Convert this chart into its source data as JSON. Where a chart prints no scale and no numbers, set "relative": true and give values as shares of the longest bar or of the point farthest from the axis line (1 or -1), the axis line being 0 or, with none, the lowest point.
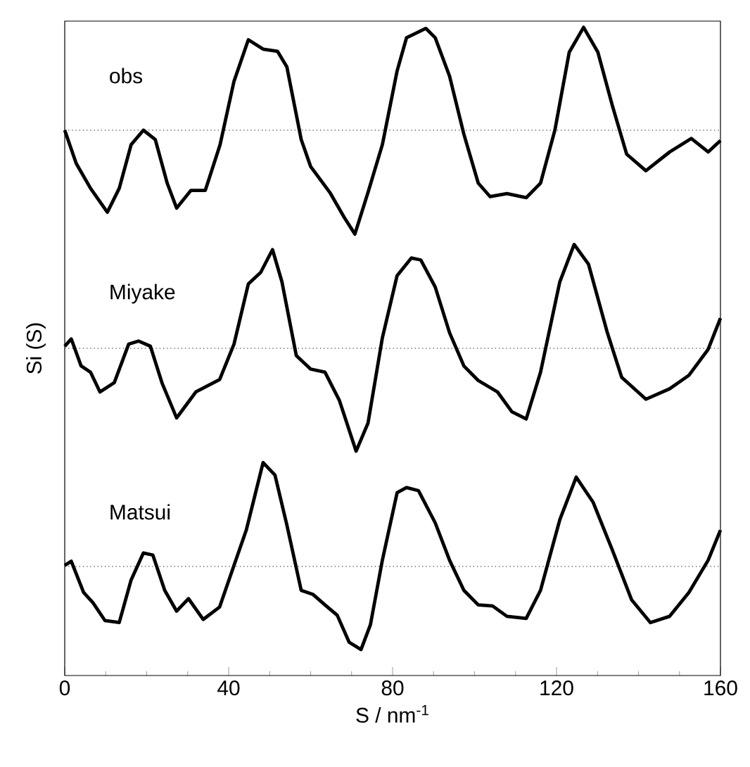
{
  "chart_data": [
    {
      "type": "line",
      "relative": true,
      "tick_labels": false,
      "xlim": [
        0,
        160
      ],
      "x": [
        0,
        2.8,
        6.3,
        10.4,
        13.3,
        16.2,
        19.2,
        22.1,
        25.0,
        27.3,
        30.8,
        34.3,
        37.9,
        41.3,
        44.8,
        48.4,
        51.9,
        54.2,
        57.7,
        60.0,
        64.7,
        68.2,
        70.8,
        74.0,
        77.5,
        81.1,
        83.4,
        88.1,
        90.4,
        93.9,
        97.4,
        100.9,
        103.8,
        107.9,
        112.6,
        116.1,
        119.6,
        123.1,
        126.6,
        130.1,
        133.6,
        137.1,
        141.8,
        147.6,
        152.9,
        157.0,
        160
      ],
      "series": [
        {
          "name": "obs",
          "color": "#000000",
          "values": [
            0,
            -0.32,
            -0.56,
            -0.79,
            -0.56,
            -0.14,
            0,
            -0.09,
            -0.51,
            -0.75,
            -0.58,
            -0.58,
            -0.14,
            0.47,
            0.87,
            0.78,
            0.76,
            0.61,
            -0.09,
            -0.35,
            -0.6,
            -0.84,
            -1.0,
            -0.6,
            -0.14,
            0.57,
            0.89,
            0.98,
            0.89,
            0.52,
            -0.04,
            -0.51,
            -0.64,
            -0.61,
            -0.65,
            -0.51,
            0.0,
            0.75,
            0.99,
            0.75,
            0.24,
            -0.23,
            -0.39,
            -0.21,
            -0.08,
            -0.21,
            -0.1
          ]
        }
      ],
      "ref_lines": [
        {
          "axis": "y",
          "value": 0,
          "color": "#000000",
          "line_style": "dotted"
        }
      ]
    },
    {
      "type": "line",
      "relative": true,
      "tick_labels": false,
      "xlim": [
        0,
        160
      ],
      "ylabel": "Si (S)",
      "x": [
        0,
        1.6,
        4.0,
        6.3,
        8.6,
        12.1,
        15.6,
        18.0,
        20.9,
        23.8,
        27.3,
        32.0,
        37.8,
        41.3,
        44.8,
        47.8,
        50.7,
        53.0,
        56.5,
        60.0,
        63.5,
        67.0,
        71.1,
        74.0,
        77.5,
        81.1,
        84.6,
        86.9,
        90.4,
        93.9,
        97.4,
        100.9,
        105.6,
        109.1,
        112.6,
        116.1,
        120.8,
        124.3,
        127.8,
        132.4,
        135.9,
        141.8,
        147.6,
        152.3,
        157.0,
        160
      ],
      "series": [
        {
          "name": "Miyake",
          "color": "#000000",
          "values": [
            0.02,
            0.09,
            -0.17,
            -0.23,
            -0.42,
            -0.33,
            0.04,
            0.07,
            0.02,
            -0.34,
            -0.67,
            -0.42,
            -0.3,
            0.04,
            0.62,
            0.73,
            0.95,
            0.64,
            -0.07,
            -0.2,
            -0.23,
            -0.5,
            -0.99,
            -0.72,
            0.1,
            0.7,
            0.87,
            0.85,
            0.59,
            0.15,
            -0.17,
            -0.31,
            -0.42,
            -0.61,
            -0.68,
            -0.23,
            0.64,
            1.0,
            0.81,
            0.15,
            -0.28,
            -0.49,
            -0.39,
            -0.26,
            -0.01,
            0.29
          ]
        }
      ],
      "ref_lines": [
        {
          "axis": "y",
          "value": 0,
          "color": "#000000",
          "line_style": "dotted"
        }
      ]
    },
    {
      "type": "line",
      "relative": true,
      "tick_labels": "x",
      "xlim": [
        0,
        160
      ],
      "xticks": [
        0,
        40,
        80,
        120,
        160
      ],
      "xlabel": "S / nm$^{-1}$",
      "x": [
        0,
        1.6,
        4.6,
        6.9,
        9.8,
        13.3,
        16.2,
        19.2,
        21.5,
        24.4,
        27.3,
        30.2,
        33.8,
        37.8,
        41.3,
        44.3,
        48.4,
        51.3,
        54.2,
        57.7,
        60.6,
        63.5,
        66.5,
        69.4,
        72.3,
        74.6,
        77.5,
        81.1,
        83.4,
        86.3,
        90.4,
        93.9,
        97.4,
        100.9,
        104.4,
        107.9,
        112.6,
        116.1,
        120.8,
        124.8,
        128.9,
        133.6,
        138.3,
        142.9,
        147.6,
        152.3,
        157.0,
        160
      ],
      "series": [
        {
          "name": "Matsui",
          "color": "#000000",
          "values": [
            0.01,
            0.05,
            -0.25,
            -0.35,
            -0.52,
            -0.54,
            -0.13,
            0.13,
            0.11,
            -0.23,
            -0.43,
            -0.31,
            -0.51,
            -0.39,
            0.01,
            0.35,
            1.0,
            0.88,
            0.4,
            -0.23,
            -0.27,
            -0.37,
            -0.47,
            -0.73,
            -0.8,
            -0.56,
            0.06,
            0.71,
            0.76,
            0.73,
            0.42,
            0.06,
            -0.23,
            -0.37,
            -0.38,
            -0.48,
            -0.5,
            -0.23,
            0.45,
            0.86,
            0.62,
            0.16,
            -0.32,
            -0.54,
            -0.48,
            -0.25,
            0.06,
            0.35
          ]
        }
      ],
      "ref_lines": [
        {
          "axis": "y",
          "value": 0,
          "color": "#000000",
          "line_style": "dotted"
        }
      ]
    }
  ]
}
